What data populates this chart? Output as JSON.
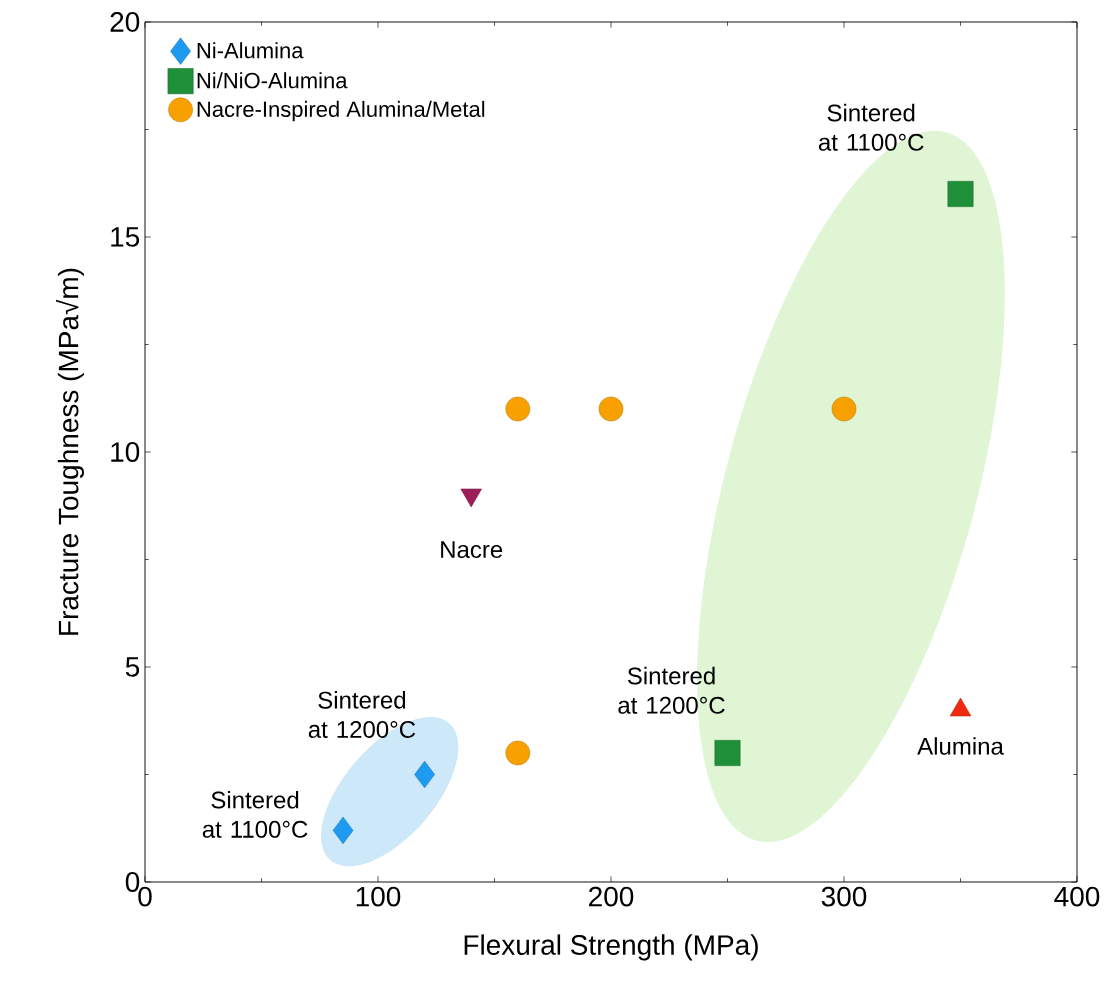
{
  "chart_data": {
    "type": "scatter",
    "xlabel": "Flexural Strength (MPa)",
    "ylabel": "Fracture Toughness (MPa√m)",
    "xlim": [
      0,
      400
    ],
    "ylim": [
      0,
      20
    ],
    "xticks": [
      0,
      100,
      200,
      300,
      400
    ],
    "yticks": [
      0,
      5,
      10,
      15,
      20
    ],
    "legend": "top left",
    "grid": false,
    "series": [
      {
        "name": "Ni-Alumina",
        "color": "#1e9bf0",
        "marker": "diamond",
        "x": [
          85,
          120
        ],
        "values": [
          1.2,
          2.5
        ]
      },
      {
        "name": "Ni/NiO-Alumina",
        "color": "#1f8f3a",
        "marker": "square",
        "x": [
          250,
          350
        ],
        "values": [
          3,
          16
        ]
      },
      {
        "name": "Nacre-Inspired Alumina/Metal",
        "color": "#f7a000",
        "marker": "circle",
        "x": [
          160,
          200,
          300,
          160
        ],
        "values": [
          11,
          11,
          11,
          3
        ]
      },
      {
        "color": "#9c1f5a",
        "marker": "triangle down",
        "x": [
          140
        ],
        "values": [
          9
        ]
      },
      {
        "color": "#f02a10",
        "marker": "triangle",
        "x": [
          350
        ],
        "values": [
          4
        ]
      }
    ],
    "annotations": [
      {
        "text": "Sintered at 1100°C",
        "x": 85,
        "y": 1.2
      },
      {
        "text": "Sintered at 1200°C",
        "x": 120,
        "y": 2.5
      },
      {
        "text": "Nacre",
        "x": 140,
        "y": 9
      },
      {
        "text": "Sintered at 1200°C",
        "x": 250,
        "y": 3
      },
      {
        "text": "Sintered at 1100°C",
        "x": 350,
        "y": 16
      },
      {
        "text": "Alumina",
        "x": 350,
        "y": 4
      }
    ]
  }
}
